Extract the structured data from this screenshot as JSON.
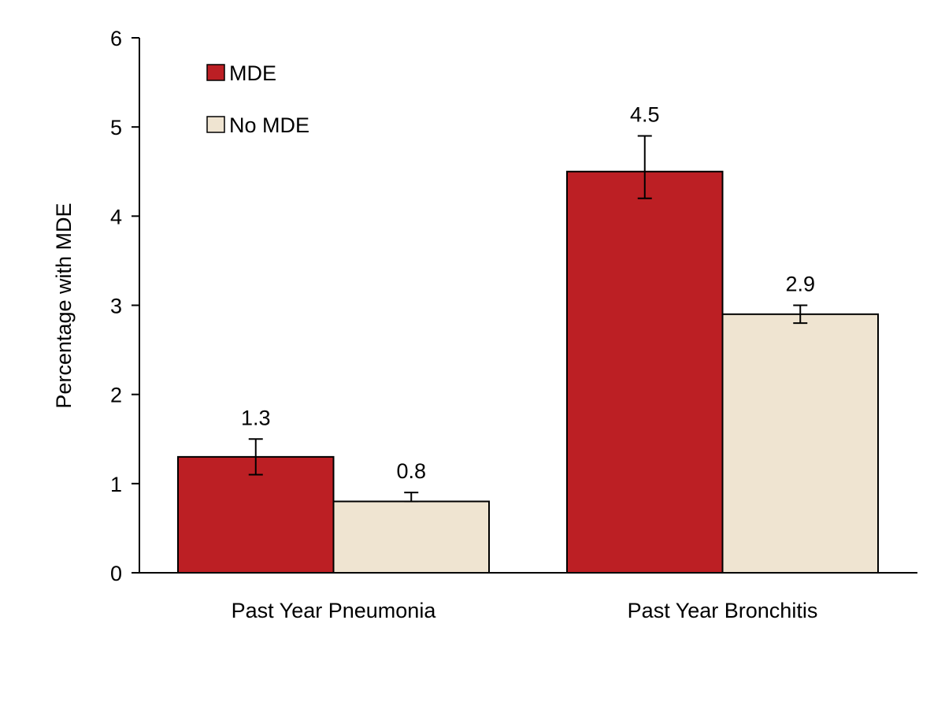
{
  "chart_data": {
    "type": "bar",
    "title": "",
    "xlabel": "",
    "ylabel": "Percentage with MDE",
    "ylim": [
      0,
      6
    ],
    "yticks": [
      "0",
      "1",
      "2",
      "3",
      "4",
      "5",
      "6"
    ],
    "categories": [
      "Past Year Pneumonia",
      "Past Year Bronchitis"
    ],
    "series": [
      {
        "name": "MDE",
        "color": "#BC1F24",
        "values": [
          1.3,
          4.5
        ],
        "labels": [
          "1.3",
          "4.5"
        ],
        "error_low": [
          1.1,
          4.2
        ],
        "error_high": [
          1.5,
          4.9
        ]
      },
      {
        "name": "No MDE",
        "color": "#EFE4D1",
        "values": [
          0.8,
          2.9
        ],
        "labels": [
          "0.8",
          "2.9"
        ],
        "error_low": [
          0.8,
          2.8
        ],
        "error_high": [
          0.9,
          3.0
        ]
      }
    ],
    "legend": "top-left",
    "grid": false
  }
}
